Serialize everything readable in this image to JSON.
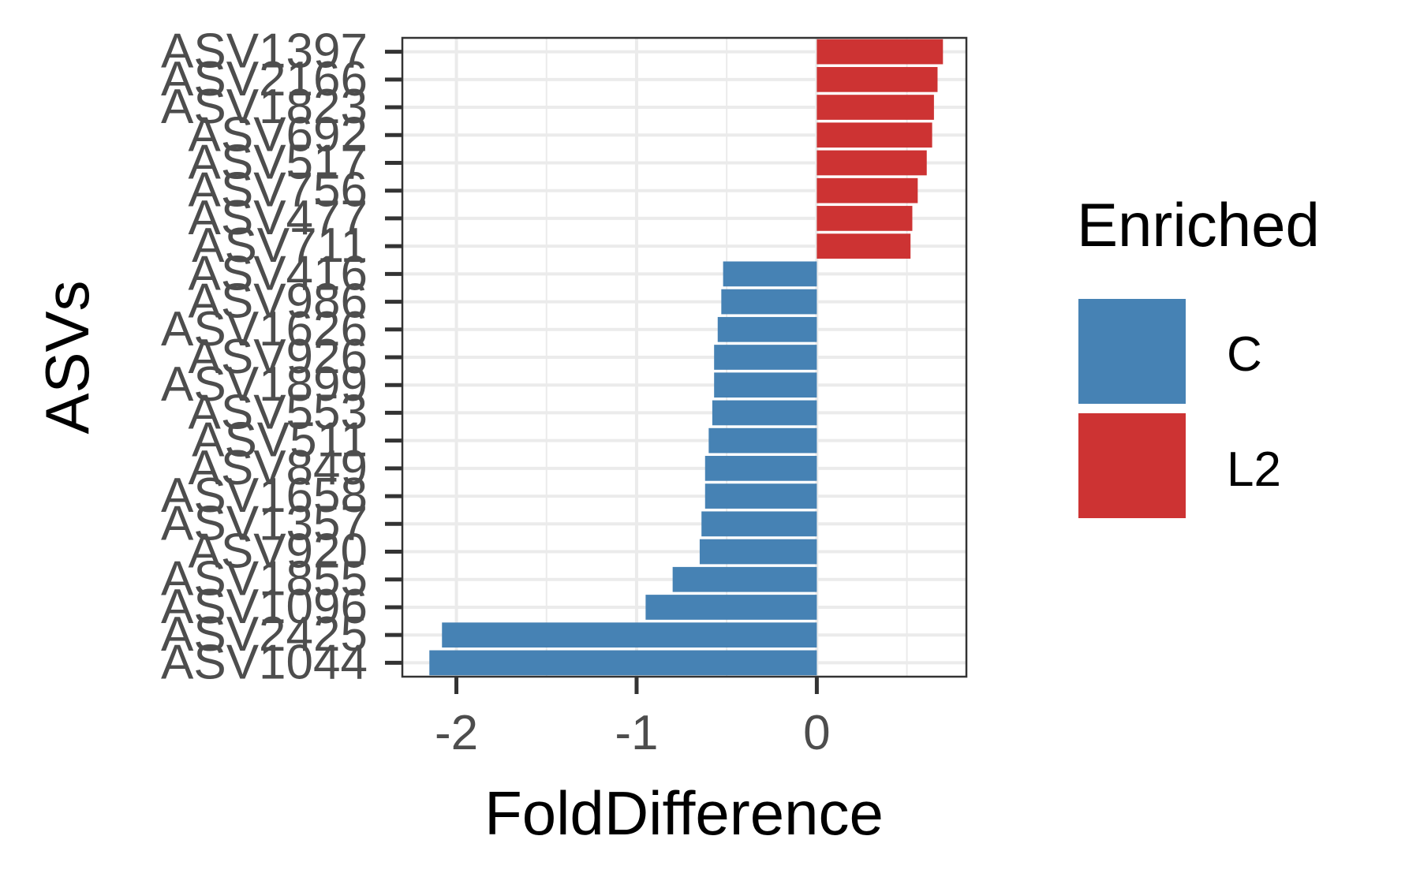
{
  "chart_data": {
    "type": "bar",
    "orientation": "horizontal",
    "xlabel": "FoldDifference",
    "ylabel": "ASVs",
    "xlim": [
      -2.3,
      0.83
    ],
    "x_ticks": [
      -2,
      -1,
      0
    ],
    "x_tick_labels": [
      "-2",
      "-1",
      "0"
    ],
    "grid": true,
    "legend_position": "right",
    "legend_title": "Enriched",
    "legend": [
      {
        "label": "C",
        "color": "#4682b4"
      },
      {
        "label": "L2",
        "color": "#cd3333"
      }
    ],
    "categories": [
      "ASV1397",
      "ASV2166",
      "ASV1823",
      "ASV692",
      "ASV517",
      "ASV756",
      "ASV477",
      "ASV711",
      "ASV416",
      "ASV986",
      "ASV1626",
      "ASV926",
      "ASV1899",
      "ASV553",
      "ASV511",
      "ASV849",
      "ASV1658",
      "ASV1357",
      "ASV920",
      "ASV1855",
      "ASV1096",
      "ASV2425",
      "ASV1044"
    ],
    "values": [
      0.7,
      0.67,
      0.65,
      0.64,
      0.61,
      0.56,
      0.53,
      0.52,
      -0.52,
      -0.53,
      -0.55,
      -0.57,
      -0.57,
      -0.58,
      -0.6,
      -0.62,
      -0.62,
      -0.64,
      -0.65,
      -0.8,
      -0.95,
      -2.08,
      -2.15
    ],
    "groups": [
      "L2",
      "L2",
      "L2",
      "L2",
      "L2",
      "L2",
      "L2",
      "L2",
      "C",
      "C",
      "C",
      "C",
      "C",
      "C",
      "C",
      "C",
      "C",
      "C",
      "C",
      "C",
      "C",
      "C",
      "C"
    ]
  }
}
